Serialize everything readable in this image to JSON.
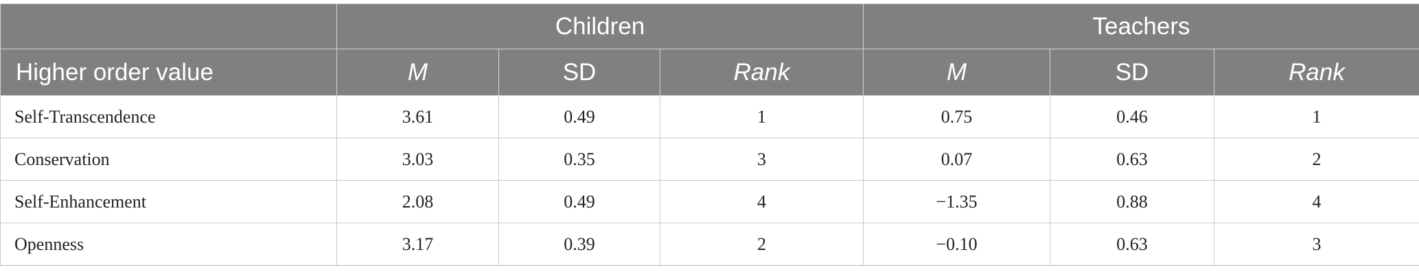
{
  "table": {
    "group_headers": [
      "Children",
      "Teachers"
    ],
    "columns": [
      "Higher order value",
      "M",
      "SD",
      "Rank",
      "M",
      "SD",
      "Rank"
    ],
    "rows": [
      [
        "Self-Transcendence",
        "3.61",
        "0.49",
        "1",
        "0.75",
        "0.46",
        "1"
      ],
      [
        "Conservation",
        "3.03",
        "0.35",
        "3",
        "0.07",
        "0.63",
        "2"
      ],
      [
        "Self-Enhancement",
        "2.08",
        "0.49",
        "4",
        "−1.35",
        "0.88",
        "4"
      ],
      [
        "Openness",
        "3.17",
        "0.39",
        "2",
        "−0.10",
        "0.63",
        "3"
      ]
    ]
  },
  "colors": {
    "header_background": "#808080",
    "header_text": "#ffffff",
    "body_text": "#222222",
    "grid_lines": "#c8c8c8"
  }
}
